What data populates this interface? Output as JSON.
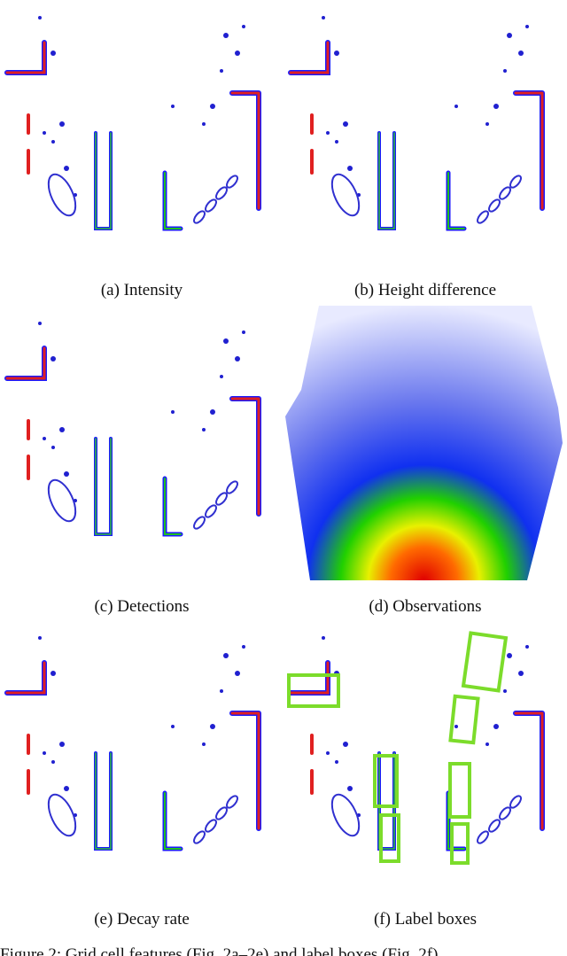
{
  "subfigures": [
    {
      "caption": "(a) Intensity"
    },
    {
      "caption": "(b) Height difference"
    },
    {
      "caption": "(c) Detections"
    },
    {
      "caption": "(d) Observations"
    },
    {
      "caption": "(e) Decay rate"
    },
    {
      "caption": "(f) Label boxes"
    }
  ],
  "figure_caption": "Figure 2: Grid cell features (Fig. 2a–2e) and label boxes (Fig. 2f)."
}
